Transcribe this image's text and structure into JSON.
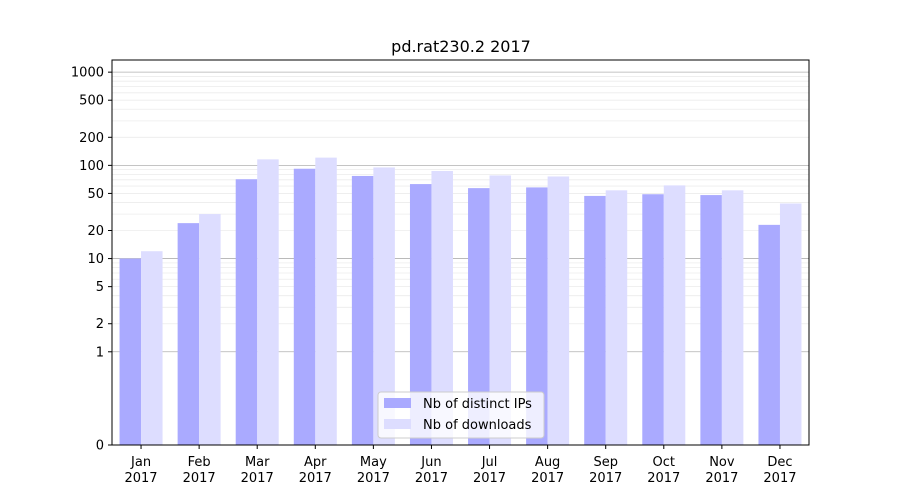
{
  "chart_data": {
    "type": "bar",
    "title": "pd.rat230.2 2017",
    "xlabel": "",
    "ylabel": "",
    "scale": "symlog",
    "categories": [
      [
        "Jan",
        "2017"
      ],
      [
        "Feb",
        "2017"
      ],
      [
        "Mar",
        "2017"
      ],
      [
        "Apr",
        "2017"
      ],
      [
        "May",
        "2017"
      ],
      [
        "Jun",
        "2017"
      ],
      [
        "Jul",
        "2017"
      ],
      [
        "Aug",
        "2017"
      ],
      [
        "Sep",
        "2017"
      ],
      [
        "Oct",
        "2017"
      ],
      [
        "Nov",
        "2017"
      ],
      [
        "Dec",
        "2017"
      ]
    ],
    "series": [
      {
        "name": "Nb of distinct IPs",
        "color": "#aaaaff",
        "values": [
          10,
          24,
          71,
          92,
          77,
          63,
          57,
          58,
          47,
          49,
          48,
          23
        ]
      },
      {
        "name": "Nb of downloads",
        "color": "#ddddff",
        "values": [
          12,
          30,
          116,
          121,
          95,
          87,
          78,
          76,
          54,
          61,
          54,
          39
        ]
      }
    ],
    "yticks": [
      {
        "value": 0,
        "label": "0"
      },
      {
        "value": 1,
        "label": "1"
      },
      {
        "value": 2,
        "label": "2"
      },
      {
        "value": 5,
        "label": "5"
      },
      {
        "value": 10,
        "label": "10"
      },
      {
        "value": 20,
        "label": "20"
      },
      {
        "value": 50,
        "label": "50"
      },
      {
        "value": 100,
        "label": "100"
      },
      {
        "value": 200,
        "label": "200"
      },
      {
        "value": 500,
        "label": "500"
      },
      {
        "value": 1000,
        "label": "1000"
      }
    ],
    "ylim": [
      0,
      1350
    ],
    "grid": true,
    "legend_position": "bottom-center"
  }
}
